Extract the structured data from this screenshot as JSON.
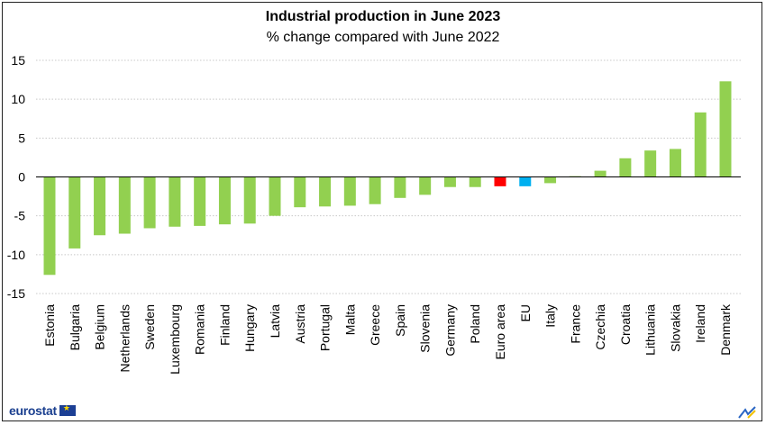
{
  "chart_data": {
    "type": "bar",
    "title": "Industrial production in June 2023",
    "subtitle": "% change compared with June 2022",
    "categories": [
      "Estonia",
      "Bulgaria",
      "Belgium",
      "Netherlands",
      "Sweden",
      "Luxembourg",
      "Romania",
      "Finland",
      "Hungary",
      "Latvia",
      "Austria",
      "Portugal",
      "Malta",
      "Greece",
      "Spain",
      "Slovenia",
      "Germany",
      "Poland",
      "Euro area",
      "EU",
      "Italy",
      "France",
      "Czechia",
      "Croatia",
      "Lithuania",
      "Slovakia",
      "Ireland",
      "Denmark"
    ],
    "values": [
      -12.6,
      -9.2,
      -7.5,
      -7.3,
      -6.6,
      -6.4,
      -6.3,
      -6.1,
      -6.0,
      -5.0,
      -3.9,
      -3.8,
      -3.7,
      -3.5,
      -2.7,
      -2.3,
      -1.3,
      -1.3,
      -1.2,
      -1.2,
      -0.8,
      0.1,
      0.8,
      2.4,
      3.4,
      3.6,
      8.3,
      12.3
    ],
    "colors": {
      "default": "#92d050",
      "Euro area": "#ff0000",
      "EU": "#00b0f0"
    },
    "ylim": [
      -15,
      15
    ],
    "yticks": [
      -15,
      -10,
      -5,
      0,
      5,
      10,
      15
    ],
    "grid": true
  },
  "branding": {
    "logo_text": "eurostat"
  }
}
